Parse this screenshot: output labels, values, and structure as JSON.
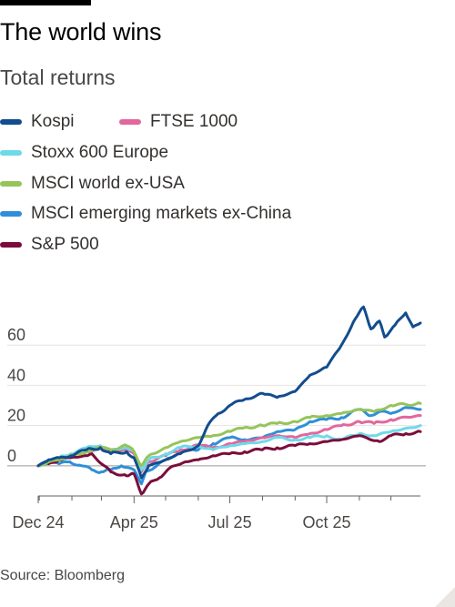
{
  "header": {
    "title": "The world wins",
    "subtitle": "Total returns"
  },
  "source": "Source: Bloomberg",
  "chart_data": {
    "type": "line",
    "x_tick_labels": [
      "Dec 24",
      "Apr 25",
      "Jul 25",
      "Oct 25"
    ],
    "x_tick_dates": [
      "2024-12-31",
      "2025-04-01",
      "2025-07-01",
      "2025-10-01"
    ],
    "x_range": [
      "2024-12-31",
      "2025-12-29"
    ],
    "ylim": [
      -15,
      80
    ],
    "y_ticks": [
      0,
      20,
      40,
      60
    ],
    "grid": true,
    "legend_position": "top-left",
    "series": [
      {
        "name": "MSCI emerging markets ex-China",
        "color": "#2f8fd8",
        "points": [
          [
            "2024-12-31",
            0
          ],
          [
            "2025-01-10",
            3
          ],
          [
            "2025-01-20",
            1
          ],
          [
            "2025-01-30",
            2
          ],
          [
            "2025-02-10",
            0
          ],
          [
            "2025-02-20",
            -2
          ],
          [
            "2025-03-01",
            -3
          ],
          [
            "2025-03-10",
            -2
          ],
          [
            "2025-03-20",
            0
          ],
          [
            "2025-04-01",
            -2
          ],
          [
            "2025-04-08",
            -9
          ],
          [
            "2025-04-12",
            -3
          ],
          [
            "2025-04-20",
            -1
          ],
          [
            "2025-05-01",
            3
          ],
          [
            "2025-05-15",
            7
          ],
          [
            "2025-06-01",
            8
          ],
          [
            "2025-06-15",
            11
          ],
          [
            "2025-07-01",
            14
          ],
          [
            "2025-07-15",
            13
          ],
          [
            "2025-08-01",
            14
          ],
          [
            "2025-08-15",
            17
          ],
          [
            "2025-09-01",
            18
          ],
          [
            "2025-09-15",
            22
          ],
          [
            "2025-10-01",
            23
          ],
          [
            "2025-10-15",
            24
          ],
          [
            "2025-11-01",
            28
          ],
          [
            "2025-11-10",
            25
          ],
          [
            "2025-11-20",
            27
          ],
          [
            "2025-12-01",
            26
          ],
          [
            "2025-12-15",
            29
          ],
          [
            "2025-12-29",
            28
          ]
        ]
      },
      {
        "name": "FTSE 1000",
        "color": "#e3679d",
        "points": [
          [
            "2024-12-31",
            0
          ],
          [
            "2025-01-10",
            2
          ],
          [
            "2025-01-20",
            4
          ],
          [
            "2025-01-31",
            5
          ],
          [
            "2025-02-15",
            7
          ],
          [
            "2025-02-28",
            9
          ],
          [
            "2025-03-10",
            7
          ],
          [
            "2025-03-25",
            8
          ],
          [
            "2025-04-01",
            6
          ],
          [
            "2025-04-08",
            -3
          ],
          [
            "2025-04-15",
            2
          ],
          [
            "2025-05-01",
            5
          ],
          [
            "2025-05-15",
            8
          ],
          [
            "2025-06-01",
            10
          ],
          [
            "2025-06-15",
            9
          ],
          [
            "2025-07-01",
            11
          ],
          [
            "2025-07-15",
            12
          ],
          [
            "2025-08-01",
            14
          ],
          [
            "2025-08-15",
            15
          ],
          [
            "2025-09-01",
            14
          ],
          [
            "2025-09-15",
            16
          ],
          [
            "2025-10-01",
            18
          ],
          [
            "2025-10-15",
            20
          ],
          [
            "2025-11-01",
            22
          ],
          [
            "2025-11-15",
            21
          ],
          [
            "2025-12-01",
            23
          ],
          [
            "2025-12-29",
            25
          ]
        ]
      },
      {
        "name": "Stoxx 600 Europe",
        "color": "#6ed9e7",
        "points": [
          [
            "2024-12-31",
            0
          ],
          [
            "2025-01-10",
            2
          ],
          [
            "2025-01-20",
            4
          ],
          [
            "2025-01-31",
            6
          ],
          [
            "2025-02-15",
            9
          ],
          [
            "2025-02-28",
            10
          ],
          [
            "2025-03-10",
            8
          ],
          [
            "2025-03-25",
            9
          ],
          [
            "2025-04-01",
            7
          ],
          [
            "2025-04-08",
            -2
          ],
          [
            "2025-04-15",
            3
          ],
          [
            "2025-05-01",
            6
          ],
          [
            "2025-05-15",
            9
          ],
          [
            "2025-06-01",
            10
          ],
          [
            "2025-06-15",
            8
          ],
          [
            "2025-07-01",
            10
          ],
          [
            "2025-07-15",
            11
          ],
          [
            "2025-08-01",
            12
          ],
          [
            "2025-08-15",
            14
          ],
          [
            "2025-09-01",
            13
          ],
          [
            "2025-09-15",
            14
          ],
          [
            "2025-10-01",
            15
          ],
          [
            "2025-10-15",
            13
          ],
          [
            "2025-11-01",
            16
          ],
          [
            "2025-11-15",
            15
          ],
          [
            "2025-12-01",
            17
          ],
          [
            "2025-12-29",
            20
          ]
        ]
      },
      {
        "name": "S&P 500",
        "color": "#7a0d3c",
        "points": [
          [
            "2024-12-31",
            0
          ],
          [
            "2025-01-10",
            1
          ],
          [
            "2025-01-20",
            3
          ],
          [
            "2025-01-31",
            4
          ],
          [
            "2025-02-15",
            5
          ],
          [
            "2025-02-20",
            6
          ],
          [
            "2025-03-01",
            1
          ],
          [
            "2025-03-10",
            -3
          ],
          [
            "2025-03-25",
            -5
          ],
          [
            "2025-04-01",
            -4
          ],
          [
            "2025-04-08",
            -14
          ],
          [
            "2025-04-15",
            -9
          ],
          [
            "2025-04-25",
            -6
          ],
          [
            "2025-05-05",
            -1
          ],
          [
            "2025-05-20",
            2
          ],
          [
            "2025-06-01",
            3
          ],
          [
            "2025-06-15",
            5
          ],
          [
            "2025-07-01",
            6
          ],
          [
            "2025-07-15",
            7
          ],
          [
            "2025-08-01",
            8
          ],
          [
            "2025-08-15",
            9
          ],
          [
            "2025-09-01",
            10
          ],
          [
            "2025-09-15",
            11
          ],
          [
            "2025-10-01",
            12
          ],
          [
            "2025-10-15",
            13
          ],
          [
            "2025-11-01",
            15
          ],
          [
            "2025-11-20",
            12
          ],
          [
            "2025-12-01",
            15
          ],
          [
            "2025-12-15",
            16
          ],
          [
            "2025-12-29",
            17
          ]
        ]
      },
      {
        "name": "MSCI world ex-USA",
        "color": "#96c45a",
        "points": [
          [
            "2024-12-31",
            0
          ],
          [
            "2025-01-10",
            2
          ],
          [
            "2025-01-20",
            3
          ],
          [
            "2025-01-31",
            5
          ],
          [
            "2025-02-15",
            7
          ],
          [
            "2025-02-28",
            9
          ],
          [
            "2025-03-10",
            8
          ],
          [
            "2025-03-25",
            10
          ],
          [
            "2025-04-01",
            7
          ],
          [
            "2025-04-08",
            0
          ],
          [
            "2025-04-15",
            5
          ],
          [
            "2025-05-01",
            9
          ],
          [
            "2025-05-15",
            12
          ],
          [
            "2025-06-01",
            14
          ],
          [
            "2025-06-15",
            15
          ],
          [
            "2025-07-01",
            17
          ],
          [
            "2025-07-15",
            19
          ],
          [
            "2025-08-01",
            20
          ],
          [
            "2025-08-15",
            21
          ],
          [
            "2025-09-01",
            22
          ],
          [
            "2025-09-15",
            24
          ],
          [
            "2025-10-01",
            25
          ],
          [
            "2025-10-15",
            26
          ],
          [
            "2025-11-01",
            28
          ],
          [
            "2025-11-15",
            27
          ],
          [
            "2025-12-01",
            30
          ],
          [
            "2025-12-29",
            31
          ]
        ]
      },
      {
        "name": "Kospi",
        "color": "#124d8e",
        "points": [
          [
            "2024-12-31",
            0
          ],
          [
            "2025-01-10",
            3
          ],
          [
            "2025-01-20",
            4
          ],
          [
            "2025-01-31",
            5
          ],
          [
            "2025-02-15",
            8
          ],
          [
            "2025-02-28",
            9
          ],
          [
            "2025-03-10",
            6
          ],
          [
            "2025-03-25",
            7
          ],
          [
            "2025-04-01",
            4
          ],
          [
            "2025-04-08",
            -6
          ],
          [
            "2025-04-15",
            0
          ],
          [
            "2025-05-01",
            3
          ],
          [
            "2025-05-15",
            6
          ],
          [
            "2025-06-01",
            10
          ],
          [
            "2025-06-10",
            20
          ],
          [
            "2025-06-20",
            26
          ],
          [
            "2025-07-01",
            30
          ],
          [
            "2025-07-15",
            33
          ],
          [
            "2025-08-01",
            36
          ],
          [
            "2025-08-15",
            34
          ],
          [
            "2025-09-01",
            37
          ],
          [
            "2025-09-15",
            45
          ],
          [
            "2025-10-01",
            49
          ],
          [
            "2025-10-15",
            60
          ],
          [
            "2025-10-28",
            73
          ],
          [
            "2025-11-05",
            79
          ],
          [
            "2025-11-12",
            68
          ],
          [
            "2025-11-20",
            72
          ],
          [
            "2025-11-25",
            64
          ],
          [
            "2025-12-05",
            70
          ],
          [
            "2025-12-15",
            76
          ],
          [
            "2025-12-22",
            69
          ],
          [
            "2025-12-29",
            71
          ]
        ]
      }
    ]
  }
}
